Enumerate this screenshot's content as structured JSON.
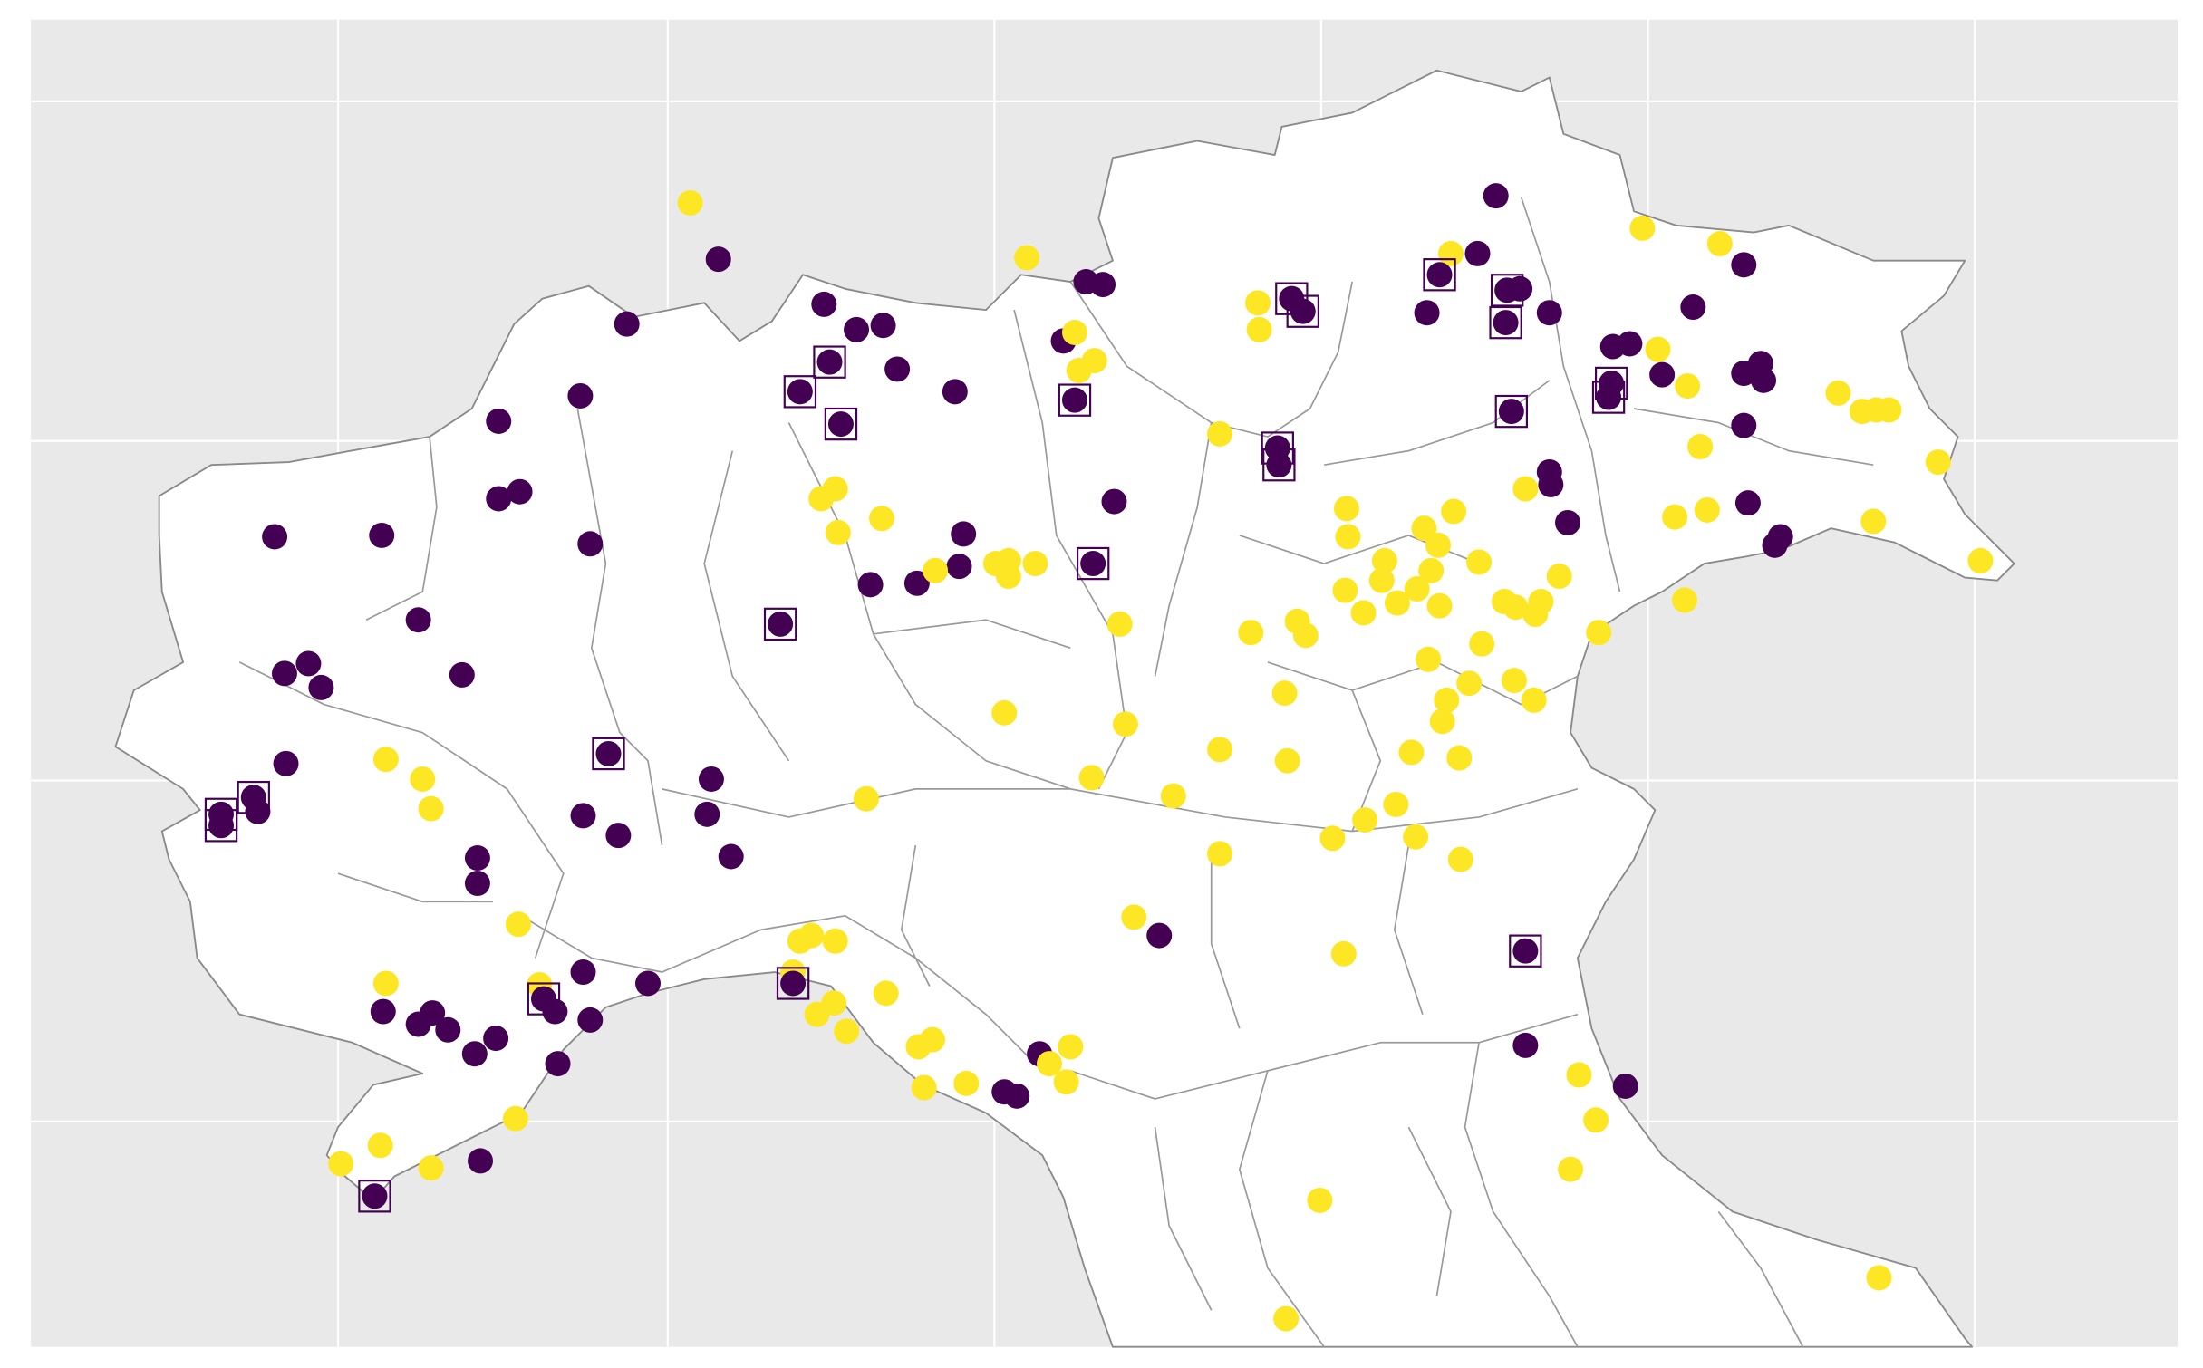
{
  "colors": {
    "frame_background": "#ffffff",
    "panel_background": "#e9e9e9",
    "gridline": "#ffffff",
    "land_fill": "#ffffff",
    "region_border": "#9a9a9a",
    "coast_border": "#8a8a8a",
    "category_a": "#440154",
    "category_b": "#fde725",
    "highlight_box": "#440154"
  },
  "chart_data": {
    "type": "scatter",
    "title": "",
    "xlabel": "",
    "ylabel": "",
    "legend": "none",
    "grid": true,
    "series": [
      {
        "category": "a",
        "color": "#440154",
        "points": [
          [
            1062,
            139
          ],
          [
            510,
            184
          ],
          [
            1049,
            180
          ],
          [
            771,
            200
          ],
          [
            783,
            202
          ],
          [
            1238,
            188
          ],
          [
            1079,
            205
          ],
          [
            585,
            216
          ],
          [
            1100,
            222
          ],
          [
            1202,
            218
          ],
          [
            1013,
            222
          ],
          [
            445,
            230
          ],
          [
            608,
            234
          ],
          [
            627,
            231
          ],
          [
            755,
            242
          ],
          [
            1145,
            246
          ],
          [
            1157,
            244
          ],
          [
            637,
            262
          ],
          [
            1250,
            258
          ],
          [
            1238,
            265
          ],
          [
            1252,
            270
          ],
          [
            1180,
            266
          ],
          [
            678,
            278
          ],
          [
            412,
            281
          ],
          [
            354,
            299
          ],
          [
            1238,
            302
          ],
          [
            791,
            356
          ],
          [
            1100,
            335
          ],
          [
            1101,
            344
          ],
          [
            369,
            349
          ],
          [
            354,
            354
          ],
          [
            684,
            379
          ],
          [
            1113,
            371
          ],
          [
            1241,
            357
          ],
          [
            1264,
            381
          ],
          [
            1260,
            387
          ],
          [
            195,
            381
          ],
          [
            271,
            380
          ],
          [
            419,
            386
          ],
          [
            618,
            415
          ],
          [
            651,
            414
          ],
          [
            681,
            402
          ],
          [
            297,
            440
          ],
          [
            202,
            478
          ],
          [
            219,
            471
          ],
          [
            228,
            488
          ],
          [
            328,
            479
          ],
          [
            203,
            542
          ],
          [
            505,
            553
          ],
          [
            183,
            576
          ],
          [
            414,
            579
          ],
          [
            502,
            578
          ],
          [
            439,
            593
          ],
          [
            519,
            608
          ],
          [
            339,
            609
          ],
          [
            339,
            627
          ],
          [
            823,
            664
          ],
          [
            414,
            690
          ],
          [
            460,
            698
          ],
          [
            272,
            718
          ],
          [
            297,
            727
          ],
          [
            307,
            719
          ],
          [
            318,
            731
          ],
          [
            337,
            748
          ],
          [
            352,
            737
          ],
          [
            394,
            718
          ],
          [
            419,
            724
          ],
          [
            396,
            755
          ],
          [
            713,
            775
          ],
          [
            722,
            778
          ],
          [
            738,
            748
          ],
          [
            1083,
            742
          ],
          [
            1154,
            771
          ],
          [
            341,
            824
          ]
        ]
      },
      {
        "category": "b",
        "color": "#fde725",
        "points": [
          [
            490,
            144
          ],
          [
            729,
            183
          ],
          [
            1166,
            162
          ],
          [
            1221,
            173
          ],
          [
            1030,
            180
          ],
          [
            893,
            215
          ],
          [
            894,
            234
          ],
          [
            763,
            236
          ],
          [
            777,
            256
          ],
          [
            766,
            263
          ],
          [
            1177,
            248
          ],
          [
            1198,
            274
          ],
          [
            1305,
            279
          ],
          [
            1322,
            292
          ],
          [
            1332,
            291
          ],
          [
            1341,
            291
          ],
          [
            866,
            308
          ],
          [
            1207,
            317
          ],
          [
            1376,
            328
          ],
          [
            583,
            354
          ],
          [
            593,
            347
          ],
          [
            595,
            378
          ],
          [
            626,
            368
          ],
          [
            1083,
            347
          ],
          [
            956,
            361
          ],
          [
            1032,
            363
          ],
          [
            1011,
            375
          ],
          [
            1021,
            387
          ],
          [
            957,
            381
          ],
          [
            983,
            398
          ],
          [
            1212,
            362
          ],
          [
            1189,
            367
          ],
          [
            1330,
            370
          ],
          [
            1406,
            398
          ],
          [
            664,
            405
          ],
          [
            707,
            400
          ],
          [
            716,
            409
          ],
          [
            716,
            398
          ],
          [
            735,
            400
          ],
          [
            1050,
            399
          ],
          [
            1107,
            409
          ],
          [
            981,
            412
          ],
          [
            955,
            419
          ],
          [
            968,
            435
          ],
          [
            992,
            428
          ],
          [
            1006,
            418
          ],
          [
            1016,
            405
          ],
          [
            1022,
            430
          ],
          [
            1068,
            427
          ],
          [
            1076,
            431
          ],
          [
            1094,
            427
          ],
          [
            1090,
            436
          ],
          [
            1196,
            426
          ],
          [
            1135,
            449
          ],
          [
            795,
            443
          ],
          [
            888,
            449
          ],
          [
            921,
            441
          ],
          [
            927,
            451
          ],
          [
            1052,
            457
          ],
          [
            1014,
            468
          ],
          [
            1043,
            485
          ],
          [
            1075,
            483
          ],
          [
            1089,
            497
          ],
          [
            1027,
            497
          ],
          [
            1024,
            512
          ],
          [
            912,
            492
          ],
          [
            713,
            506
          ],
          [
            799,
            514
          ],
          [
            274,
            539
          ],
          [
            300,
            553
          ],
          [
            306,
            574
          ],
          [
            615,
            567
          ],
          [
            775,
            552
          ],
          [
            833,
            565
          ],
          [
            866,
            532
          ],
          [
            914,
            540
          ],
          [
            1002,
            534
          ],
          [
            1036,
            538
          ],
          [
            991,
            571
          ],
          [
            969,
            582
          ],
          [
            946,
            595
          ],
          [
            1005,
            594
          ],
          [
            1037,
            610
          ],
          [
            866,
            606
          ],
          [
            368,
            656
          ],
          [
            805,
            651
          ],
          [
            568,
            668
          ],
          [
            576,
            664
          ],
          [
            593,
            668
          ],
          [
            954,
            677
          ],
          [
            274,
            698
          ],
          [
            383,
            699
          ],
          [
            563,
            690
          ],
          [
            629,
            705
          ],
          [
            592,
            712
          ],
          [
            580,
            720
          ],
          [
            601,
            732
          ],
          [
            652,
            743
          ],
          [
            662,
            738
          ],
          [
            760,
            743
          ],
          [
            745,
            755
          ],
          [
            757,
            768
          ],
          [
            656,
            772
          ],
          [
            686,
            769
          ],
          [
            1121,
            763
          ],
          [
            1133,
            795
          ],
          [
            366,
            794
          ],
          [
            270,
            813
          ],
          [
            242,
            826
          ],
          [
            306,
            829
          ],
          [
            1115,
            830
          ],
          [
            937,
            852
          ],
          [
            1334,
            907
          ],
          [
            913,
            936
          ]
        ]
      },
      {
        "category": "a-boxed",
        "color": "#440154",
        "points": [
          [
            1022,
            195
          ],
          [
            917,
            212
          ],
          [
            925,
            221
          ],
          [
            1070,
            206
          ],
          [
            1069,
            229
          ],
          [
            1144,
            272
          ],
          [
            1142,
            282
          ],
          [
            589,
            257
          ],
          [
            568,
            278
          ],
          [
            597,
            301
          ],
          [
            763,
            284
          ],
          [
            1073,
            292
          ],
          [
            907,
            318
          ],
          [
            908,
            330
          ],
          [
            776,
            400
          ],
          [
            554,
            443
          ],
          [
            432,
            535
          ],
          [
            180,
            566
          ],
          [
            157,
            578
          ],
          [
            157,
            586
          ],
          [
            563,
            698
          ],
          [
            386,
            709
          ],
          [
            1083,
            675
          ],
          [
            266,
            849
          ]
        ]
      }
    ]
  }
}
